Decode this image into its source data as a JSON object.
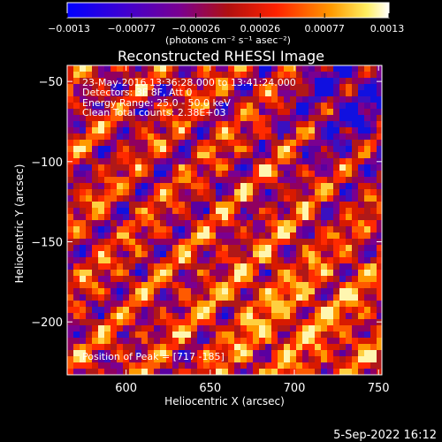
{
  "colorbar": {
    "ticks": [
      "-0.0013",
      "-0.00077",
      "-0.00026",
      "0.00026",
      "0.00077",
      "0.0013"
    ],
    "units_label": "(photons cm⁻² s⁻¹ asec⁻²)",
    "range": [
      -0.0013,
      0.0013
    ],
    "colors": [
      "#0000ff",
      "#6a00a8",
      "#a01010",
      "#ff2a00",
      "#ffaa00",
      "#ffffff"
    ]
  },
  "chart_data": {
    "type": "heatmap",
    "title": "Reconstructed RHESSI Image",
    "xlabel": "Heliocentric X (arcsec)",
    "ylabel": "Heliocentric Y (arcsec)",
    "xlim": [
      565,
      752
    ],
    "ylim": [
      -233,
      -40
    ],
    "x_ticks": [
      600,
      650,
      700,
      750
    ],
    "y_ticks": [
      -50,
      -100,
      -150,
      -200
    ],
    "x_tick_labels": [
      "600",
      "650",
      "700",
      "750"
    ],
    "y_tick_labels": [
      "−50",
      "−100",
      "−150",
      "−200"
    ],
    "annotations": [
      "23-May-2016 13:36:28.000 to 13:41:24.000",
      "Detectors: 3F 8F, Att 0",
      "Energy Range: 25.0 - 50.0 keV",
      "Clean     Total counts: 2.38E+03"
    ],
    "peak_label": "Position of Peak = [717 -185]",
    "peak_position": [
      717,
      -185
    ],
    "grid": false
  },
  "footer": {
    "date": "5-Sep-2022 16:12"
  }
}
